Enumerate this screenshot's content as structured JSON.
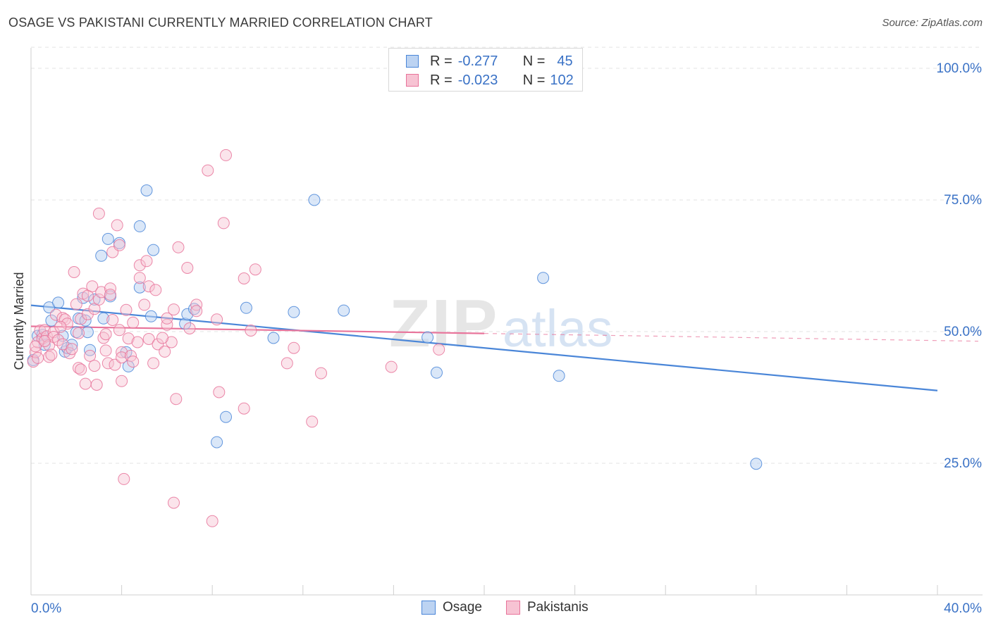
{
  "header": {
    "title": "OSAGE VS PAKISTANI CURRENTLY MARRIED CORRELATION CHART",
    "source": "Source: ZipAtlas.com"
  },
  "watermark": {
    "zip": "ZIP",
    "atlas": "atlas"
  },
  "legend": {
    "rows": [
      {
        "r_label": "R =",
        "r_value": "-0.277",
        "n_label": "N =",
        "n_value": "45",
        "color": "#4a86d8",
        "fill": "#bcd3f2"
      },
      {
        "r_label": "R =",
        "r_value": "-0.023",
        "n_label": "N =",
        "n_value": "102",
        "color": "#e8739a",
        "fill": "#f7c3d3"
      }
    ]
  },
  "bottom_legend": [
    {
      "label": "Osage",
      "color": "#4a86d8",
      "fill": "#bcd3f2"
    },
    {
      "label": "Pakistanis",
      "color": "#e8739a",
      "fill": "#f7c3d3"
    }
  ],
  "chart_data": {
    "type": "scatter",
    "title": "OSAGE VS PAKISTANI CURRENTLY MARRIED CORRELATION CHART",
    "xlabel": "",
    "ylabel": "Currently Married",
    "xlim": [
      0,
      40
    ],
    "ylim": [
      0,
      104
    ],
    "x_tick_labels": [
      "0.0%",
      "40.0%"
    ],
    "y_ticks": [
      25,
      50,
      75,
      100
    ],
    "y_tick_labels": [
      "25.0%",
      "50.0%",
      "75.0%",
      "100.0%"
    ],
    "grid": true,
    "legend_position": "top-center",
    "series": [
      {
        "name": "Osage",
        "color": "#4a86d8",
        "fill": "#bcd3f2",
        "trend": {
          "x0": 0,
          "y0": 55.0,
          "x1": 40,
          "y1": 38.8,
          "x_end_solid": 40
        },
        "points": [
          [
            0.1,
            44.6
          ],
          [
            0.3,
            49.2
          ],
          [
            0.5,
            49.4
          ],
          [
            0.6,
            47.5
          ],
          [
            0.8,
            54.6
          ],
          [
            0.9,
            52.1
          ],
          [
            1.2,
            55.5
          ],
          [
            1.4,
            49.2
          ],
          [
            1.5,
            46.2
          ],
          [
            1.6,
            46.9
          ],
          [
            1.8,
            47.5
          ],
          [
            2.0,
            49.9
          ],
          [
            2.1,
            52.5
          ],
          [
            2.3,
            56.4
          ],
          [
            2.4,
            52.1
          ],
          [
            2.5,
            49.9
          ],
          [
            2.6,
            46.5
          ],
          [
            2.8,
            56.1
          ],
          [
            3.1,
            64.4
          ],
          [
            3.2,
            52.5
          ],
          [
            3.4,
            67.6
          ],
          [
            3.5,
            56.7
          ],
          [
            3.9,
            66.8
          ],
          [
            4.2,
            46.1
          ],
          [
            4.3,
            43.4
          ],
          [
            4.8,
            58.4
          ],
          [
            4.8,
            70.0
          ],
          [
            5.1,
            76.8
          ],
          [
            5.3,
            52.9
          ],
          [
            5.4,
            65.5
          ],
          [
            6.8,
            51.5
          ],
          [
            6.9,
            53.3
          ],
          [
            7.2,
            54.3
          ],
          [
            8.2,
            29.0
          ],
          [
            8.6,
            33.8
          ],
          [
            9.5,
            54.5
          ],
          [
            10.7,
            48.8
          ],
          [
            11.6,
            53.7
          ],
          [
            12.5,
            75.0
          ],
          [
            13.8,
            54.0
          ],
          [
            17.5,
            48.9
          ],
          [
            17.9,
            42.2
          ],
          [
            22.6,
            60.2
          ],
          [
            23.3,
            41.6
          ],
          [
            32.0,
            24.9
          ]
        ]
      },
      {
        "name": "Pakistanis",
        "color": "#e8739a",
        "fill": "#f7c3d3",
        "trend": {
          "x0": 0,
          "y0": 51.0,
          "x1": 40,
          "y1": 48.3,
          "x_end_solid": 20.0
        },
        "points": [
          [
            0.1,
            44.3
          ],
          [
            0.2,
            46.1
          ],
          [
            0.3,
            48.0
          ],
          [
            0.3,
            45.0
          ],
          [
            0.4,
            50.2
          ],
          [
            0.5,
            48.7
          ],
          [
            0.6,
            50.3
          ],
          [
            0.7,
            49.1
          ],
          [
            0.8,
            45.2
          ],
          [
            0.8,
            47.4
          ],
          [
            1.0,
            49.9
          ],
          [
            1.0,
            49.0
          ],
          [
            1.1,
            53.2
          ],
          [
            1.2,
            48.4
          ],
          [
            1.4,
            47.6
          ],
          [
            1.4,
            52.6
          ],
          [
            1.5,
            52.3
          ],
          [
            1.6,
            51.5
          ],
          [
            1.7,
            45.9
          ],
          [
            1.8,
            46.7
          ],
          [
            1.9,
            61.3
          ],
          [
            2.0,
            55.2
          ],
          [
            2.1,
            43.1
          ],
          [
            2.1,
            49.7
          ],
          [
            2.2,
            52.4
          ],
          [
            2.3,
            57.2
          ],
          [
            2.4,
            40.1
          ],
          [
            2.5,
            53.3
          ],
          [
            2.5,
            56.8
          ],
          [
            2.6,
            45.4
          ],
          [
            2.7,
            58.6
          ],
          [
            2.8,
            54.3
          ],
          [
            2.8,
            43.5
          ],
          [
            2.9,
            39.9
          ],
          [
            3.0,
            72.4
          ],
          [
            3.0,
            56.1
          ],
          [
            3.1,
            57.5
          ],
          [
            3.2,
            48.8
          ],
          [
            3.3,
            46.4
          ],
          [
            3.4,
            44.0
          ],
          [
            3.5,
            58.2
          ],
          [
            3.5,
            57.0
          ],
          [
            3.6,
            65.1
          ],
          [
            3.6,
            52.2
          ],
          [
            3.7,
            43.7
          ],
          [
            3.8,
            70.2
          ],
          [
            3.9,
            66.4
          ],
          [
            3.9,
            50.3
          ],
          [
            4.0,
            40.6
          ],
          [
            4.0,
            46.1
          ],
          [
            4.0,
            45.1
          ],
          [
            4.1,
            22.0
          ],
          [
            4.2,
            54.1
          ],
          [
            4.3,
            48.7
          ],
          [
            4.4,
            45.4
          ],
          [
            4.5,
            51.7
          ],
          [
            4.5,
            44.3
          ],
          [
            4.7,
            48.0
          ],
          [
            4.8,
            62.6
          ],
          [
            4.8,
            60.2
          ],
          [
            5.0,
            55.1
          ],
          [
            5.1,
            63.4
          ],
          [
            5.2,
            58.6
          ],
          [
            5.2,
            48.6
          ],
          [
            5.4,
            44.0
          ],
          [
            5.5,
            57.9
          ],
          [
            5.6,
            47.6
          ],
          [
            5.9,
            46.2
          ],
          [
            6.0,
            51.3
          ],
          [
            6.0,
            52.5
          ],
          [
            6.2,
            48.0
          ],
          [
            6.3,
            17.5
          ],
          [
            6.3,
            54.2
          ],
          [
            6.4,
            37.2
          ],
          [
            6.5,
            66.0
          ],
          [
            6.9,
            62.1
          ],
          [
            7.3,
            55.1
          ],
          [
            7.3,
            53.9
          ],
          [
            7.8,
            80.6
          ],
          [
            8.0,
            14.0
          ],
          [
            8.2,
            52.3
          ],
          [
            8.3,
            38.5
          ],
          [
            8.5,
            70.6
          ],
          [
            8.6,
            83.5
          ],
          [
            9.4,
            35.4
          ],
          [
            9.4,
            60.1
          ],
          [
            9.7,
            50.2
          ],
          [
            9.9,
            61.8
          ],
          [
            11.3,
            44.0
          ],
          [
            11.6,
            46.9
          ],
          [
            12.4,
            32.9
          ],
          [
            12.8,
            42.1
          ],
          [
            15.9,
            43.3
          ],
          [
            18.0,
            46.6
          ],
          [
            0.2,
            47.2
          ],
          [
            0.9,
            45.6
          ],
          [
            2.2,
            42.8
          ],
          [
            3.3,
            49.5
          ],
          [
            5.8,
            48.8
          ],
          [
            7.0,
            50.6
          ],
          [
            1.3,
            50.9
          ],
          [
            0.6,
            48.2
          ]
        ]
      }
    ]
  }
}
